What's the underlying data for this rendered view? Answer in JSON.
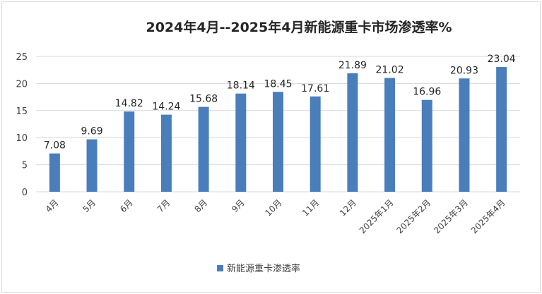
{
  "chart_data": {
    "type": "bar",
    "title": "2024年4月--2025年4月新能源重卡市场渗透率%",
    "categories": [
      "4月",
      "5月",
      "6月",
      "7月",
      "8月",
      "9月",
      "10月",
      "11月",
      "12月",
      "2025年1月",
      "2025年2月",
      "2025年3月",
      "2025年4月"
    ],
    "series": [
      {
        "name": "新能源重卡渗透率",
        "values": [
          7.08,
          9.69,
          14.82,
          14.24,
          15.68,
          18.14,
          18.45,
          17.61,
          21.89,
          21.02,
          16.96,
          20.93,
          23.04
        ],
        "color": "#4a7ebb"
      }
    ],
    "ylim": [
      0,
      25
    ],
    "yticks": [
      0,
      5,
      10,
      15,
      20,
      25
    ],
    "xlabel": "",
    "ylabel": "",
    "grid": true,
    "gridColor": "#d9d9d9",
    "legend": "bottom"
  }
}
